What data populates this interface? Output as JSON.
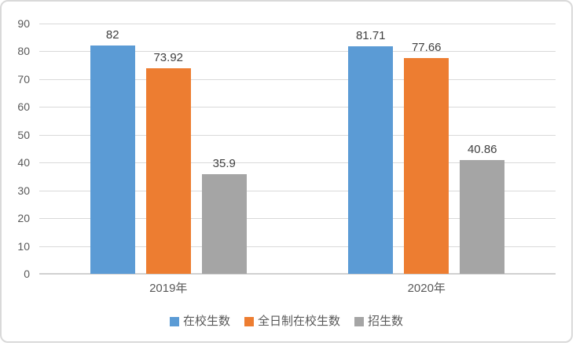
{
  "chart": {
    "background": "#ffffff",
    "frame_border_color": "#d9d9d9",
    "gridline_color": "#d9d9d9",
    "axis_line_color": "#d0d0d0",
    "tick_label_color": "#595959",
    "data_label_color": "#404040",
    "category_label_color": "#595959",
    "legend_text_color": "#595959"
  },
  "chart_data": {
    "type": "bar",
    "title": "",
    "xlabel": "",
    "ylabel": "",
    "categories": [
      "2019年",
      "2020年"
    ],
    "series": [
      {
        "name": "在校生数",
        "color": "#5B9BD5",
        "values": [
          82,
          81.71
        ],
        "labels": [
          "82",
          "81.71"
        ]
      },
      {
        "name": "全日制在校生数",
        "color": "#ED7D31",
        "values": [
          73.92,
          77.66
        ],
        "labels": [
          "73.92",
          "77.66"
        ]
      },
      {
        "name": "招生数",
        "color": "#A5A5A5",
        "values": [
          35.9,
          40.86
        ],
        "labels": [
          "35.9",
          "40.86"
        ]
      }
    ],
    "ylim": [
      0,
      90
    ],
    "yticks": [
      0,
      10,
      20,
      30,
      40,
      50,
      60,
      70,
      80,
      90
    ],
    "grid": true,
    "grid_axis": "y",
    "legend_position": "bottom",
    "data_labels": true
  }
}
